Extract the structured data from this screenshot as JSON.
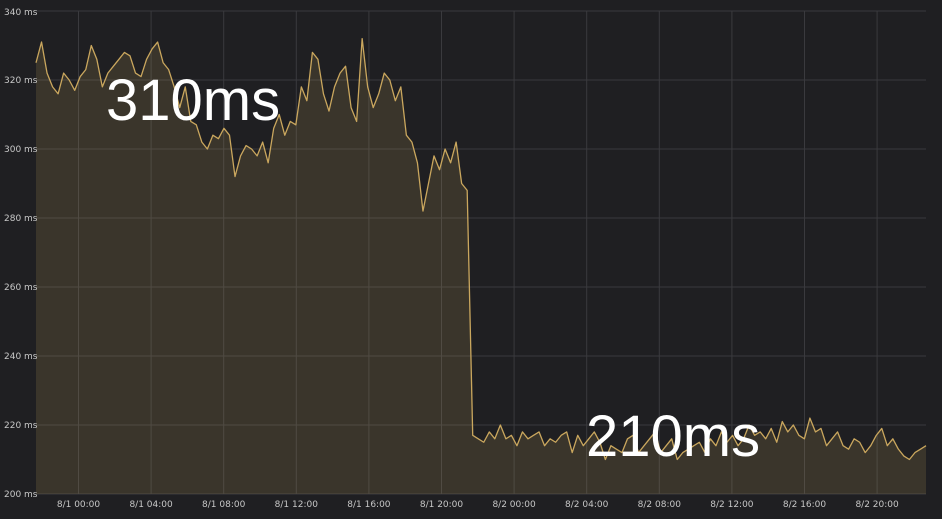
{
  "chart_data": {
    "type": "area",
    "title": "",
    "xlabel": "",
    "ylabel": "",
    "ylim": [
      200,
      340
    ],
    "grid": true,
    "legend": "none",
    "y_ticks": [
      "200 ms",
      "220 ms",
      "240 ms",
      "260 ms",
      "280 ms",
      "300 ms",
      "320 ms",
      "340 ms"
    ],
    "x_tick_labels": [
      "8/1 00:00",
      "8/1 04:00",
      "8/1 08:00",
      "8/1 12:00",
      "8/1 16:00",
      "8/1 20:00",
      "8/2 00:00",
      "8/2 04:00",
      "8/2 08:00",
      "8/2 12:00",
      "8/2 16:00",
      "8/2 20:00"
    ],
    "x_start_label": "7/31 22:00",
    "x_step_hours": 0.5,
    "series": [
      {
        "values": [
          325,
          331,
          322,
          318,
          316,
          322,
          320,
          317,
          321,
          323,
          330,
          326,
          318,
          322,
          324,
          326,
          328,
          327,
          322,
          321,
          326,
          329,
          331,
          325,
          323,
          318,
          312,
          318,
          308,
          307,
          302,
          300,
          304,
          303,
          306,
          304,
          292,
          298,
          301,
          300,
          298,
          302,
          296,
          306,
          310,
          304,
          308,
          307,
          318,
          314,
          328,
          326,
          316,
          311,
          318,
          322,
          324,
          312,
          308,
          332,
          318,
          312,
          316,
          322,
          320,
          314,
          318,
          304,
          302,
          296,
          282,
          290,
          298,
          294,
          300,
          296,
          302,
          290,
          288,
          217,
          216,
          215,
          218,
          216,
          220,
          216,
          217,
          214,
          218,
          216,
          217,
          218,
          214,
          216,
          215,
          217,
          218,
          212,
          217,
          214,
          216,
          218,
          215,
          210,
          214,
          213,
          212,
          216,
          217,
          212,
          214,
          216,
          218,
          212,
          214,
          216,
          210,
          212,
          213,
          214,
          215,
          212,
          216,
          214,
          218,
          215,
          217,
          214,
          216,
          220,
          217,
          218,
          216,
          219,
          215,
          221,
          218,
          220,
          217,
          216,
          222,
          218,
          219,
          214,
          216,
          218,
          214,
          213,
          216,
          215,
          212,
          214,
          217,
          219,
          214,
          216,
          213,
          211,
          210,
          212,
          213,
          214
        ],
        "color": "#caa75e"
      }
    ],
    "annotations": [
      {
        "text": "310ms"
      },
      {
        "text": "210ms"
      }
    ]
  }
}
